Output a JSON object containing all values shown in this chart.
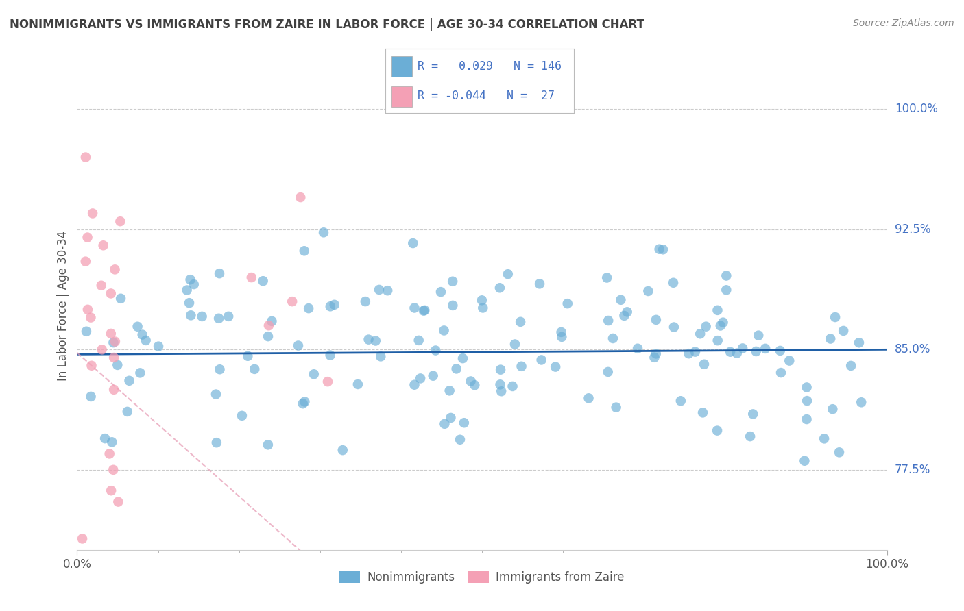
{
  "title": "NONIMMIGRANTS VS IMMIGRANTS FROM ZAIRE IN LABOR FORCE | AGE 30-34 CORRELATION CHART",
  "source": "Source: ZipAtlas.com",
  "ylabel": "In Labor Force | Age 30-34",
  "xlim": [
    0.0,
    1.0
  ],
  "ylim": [
    0.725,
    1.03
  ],
  "yticks": [
    0.775,
    0.85,
    0.925,
    1.0
  ],
  "ytick_labels": [
    "77.5%",
    "85.0%",
    "92.5%",
    "100.0%"
  ],
  "xticks": [
    0.0,
    1.0
  ],
  "xtick_labels": [
    "0.0%",
    "100.0%"
  ],
  "nonimmigrant_R": 0.029,
  "nonimmigrant_N": 146,
  "immigrant_R": -0.044,
  "immigrant_N": 27,
  "blue_color": "#6baed6",
  "blue_line_color": "#1f5fa6",
  "pink_color": "#f4a0b5",
  "pink_line_color": "#e8a0b8",
  "dot_size": 110,
  "background_color": "#ffffff",
  "grid_color": "#cccccc",
  "title_color": "#404040",
  "legend_text_color": "#4472c4",
  "right_label_color": "#4472c4",
  "axis_label_color": "#555555"
}
